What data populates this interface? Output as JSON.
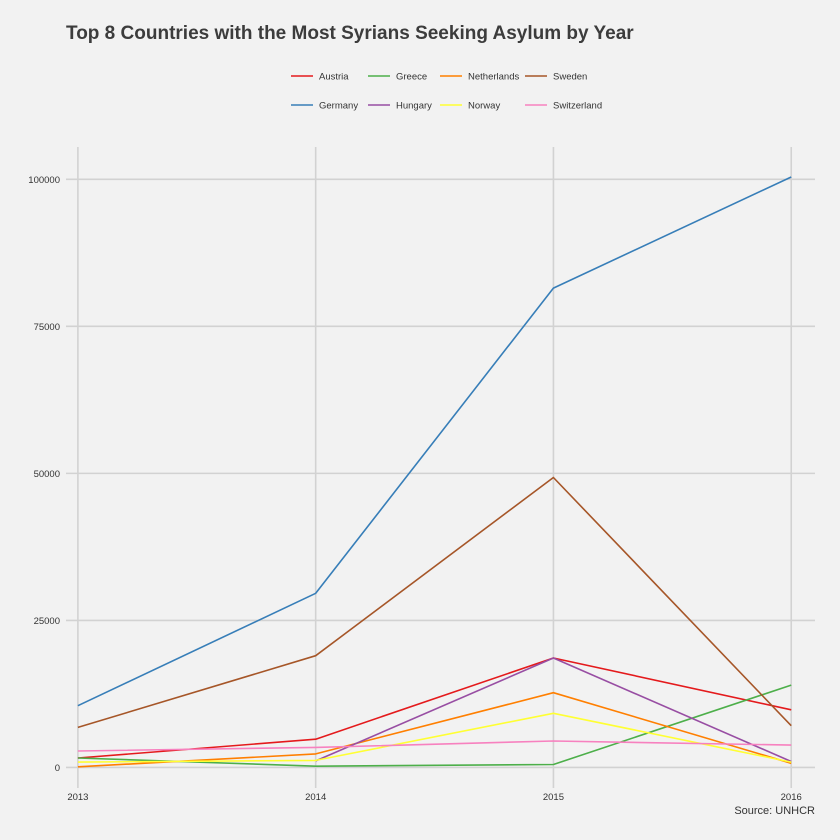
{
  "chart_data": {
    "type": "line",
    "title": "Top 8 Countries with the Most Syrians Seeking Asylum by Year",
    "xlabel": "",
    "ylabel": "",
    "caption": "Source: UNHCR",
    "x": [
      2013,
      2014,
      2015,
      2016
    ],
    "xlim": [
      2012.95,
      2016.1
    ],
    "ylim": [
      -3500,
      105500
    ],
    "yticks": [
      0,
      25000,
      50000,
      75000,
      100000
    ],
    "ytick_labels": [
      "0",
      "25000",
      "50000",
      "75000",
      "100000"
    ],
    "xtick_labels": [
      "2013",
      "2014",
      "2015",
      "2016"
    ],
    "grid": true,
    "legend_position": "top",
    "series": [
      {
        "name": "Austria",
        "color": "#e41a1c",
        "x": [
          2013,
          2014,
          2015,
          2016
        ],
        "values": [
          1600,
          4800,
          18600,
          9800
        ]
      },
      {
        "name": "Greece",
        "color": "#4daf4a",
        "x": [
          2013,
          2014,
          2015,
          2016
        ],
        "values": [
          1600,
          200,
          500,
          14000
        ]
      },
      {
        "name": "Netherlands",
        "color": "#ff7f00",
        "x": [
          2013,
          2014,
          2015,
          2016
        ],
        "values": [
          100,
          2300,
          12700,
          700
        ]
      },
      {
        "name": "Sweden",
        "color": "#a65628",
        "x": [
          2013,
          2014,
          2015,
          2016
        ],
        "values": [
          6800,
          19000,
          49300,
          7100
        ]
      },
      {
        "name": "Germany",
        "color": "#377eb8",
        "x": [
          2013,
          2014,
          2015,
          2016
        ],
        "values": [
          10500,
          29600,
          81500,
          100400
        ]
      },
      {
        "name": "Hungary",
        "color": "#984ea3",
        "x": [
          2014,
          2015,
          2016
        ],
        "values": [
          1100,
          18600,
          1000
        ]
      },
      {
        "name": "Norway",
        "color": "#ffff33",
        "x": [
          2013,
          2014,
          2015,
          2016
        ],
        "values": [
          900,
          1200,
          9200,
          900
        ]
      },
      {
        "name": "Switzerland",
        "color": "#f781bf",
        "x": [
          2013,
          2014,
          2015,
          2016
        ],
        "values": [
          2800,
          3400,
          4500,
          3800
        ]
      }
    ]
  }
}
